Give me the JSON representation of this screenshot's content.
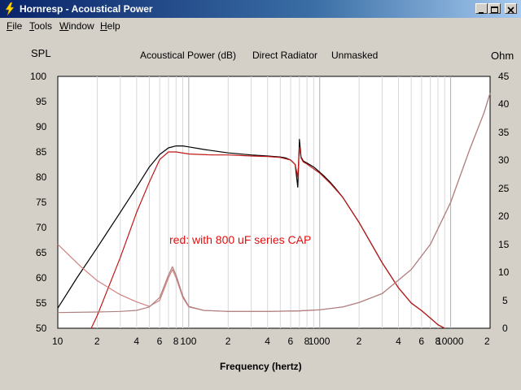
{
  "window": {
    "title": "Hornresp - Acoustical Power"
  },
  "menu": [
    {
      "label": "File",
      "u": "F",
      "rest": "ile"
    },
    {
      "label": "Tools",
      "u": "T",
      "rest": "ools"
    },
    {
      "label": "Window",
      "u": "W",
      "rest": "indow"
    },
    {
      "label": "Help",
      "u": "H",
      "rest": "elp"
    }
  ],
  "chart": {
    "left_axis_label": "SPL",
    "right_axis_label": "Ohm",
    "title_parts": [
      "Acoustical Power (dB)",
      "Direct Radiator",
      "Unmasked"
    ],
    "xlabel": "Frequency (hertz)",
    "annotation": "red: with 800 uF series CAP",
    "annotation_color": "#e01010"
  },
  "chart_data": {
    "type": "line",
    "x_scale": "log",
    "xlim": [
      10,
      20000
    ],
    "ylim_left": [
      50,
      100
    ],
    "ylim_right": [
      0,
      45
    ],
    "y_ticks_left": [
      "100",
      "95",
      "90",
      "85",
      "80",
      "75",
      "70",
      "65",
      "60",
      "55",
      "50"
    ],
    "y_ticks_right": [
      "45",
      "40",
      "35",
      "30",
      "25",
      "20",
      "15",
      "10",
      "5",
      "0"
    ],
    "x_ticks": [
      "10",
      "2",
      "4",
      "6",
      "8",
      "100",
      "2",
      "4",
      "6",
      "8",
      "1000",
      "2",
      "4",
      "6",
      "8",
      "10000",
      "2"
    ],
    "grid": true,
    "series": [
      {
        "color": "#000000",
        "axis": "left",
        "x": [
          10,
          14,
          20,
          30,
          40,
          50,
          60,
          70,
          80,
          90,
          100,
          130,
          200,
          300,
          400,
          500,
          550,
          600,
          650,
          680,
          700,
          720,
          750,
          800,
          900,
          1000,
          1100,
          1200,
          1300,
          1500,
          2000,
          3000,
          4000,
          5000,
          6000,
          7000,
          8000,
          9000
        ],
        "y": [
          54,
          60,
          66,
          73,
          78,
          82,
          84.5,
          85.8,
          86.2,
          86.2,
          86,
          85.5,
          84.8,
          84.4,
          84.2,
          84,
          83.8,
          83.4,
          82.5,
          78,
          87.5,
          84,
          83.2,
          82.8,
          82,
          81,
          80,
          79,
          78,
          76,
          71,
          63,
          58,
          55,
          53.5,
          52,
          50.7,
          50
        ]
      },
      {
        "color": "#c01818",
        "axis": "left",
        "x": [
          18,
          20,
          30,
          40,
          50,
          60,
          70,
          80,
          100,
          150,
          200,
          300,
          400,
          500,
          600,
          650,
          680,
          700,
          720,
          750,
          800,
          1000,
          1200,
          1500,
          2000,
          3000,
          4000,
          5000,
          6000,
          7000,
          8000,
          9000
        ],
        "y": [
          50,
          52.5,
          64,
          73,
          79,
          83.5,
          85,
          85,
          84.6,
          84.4,
          84.4,
          84.2,
          84.1,
          83.9,
          83.4,
          82.5,
          80,
          86,
          83.8,
          83,
          82.6,
          80.8,
          78.8,
          76,
          71,
          63,
          58,
          55,
          53.5,
          52,
          50.7,
          50
        ]
      },
      {
        "color": "#d08080",
        "axis": "right",
        "x": [
          10,
          15,
          20,
          30,
          40,
          50,
          60,
          70,
          75,
          80,
          90,
          100,
          130,
          200,
          400,
          700,
          1000,
          1500,
          2000,
          3000,
          5000,
          7000,
          10000,
          14000,
          18000,
          20000
        ],
        "y": [
          15,
          11,
          8.5,
          6,
          4.7,
          3.9,
          5,
          9,
          10.5,
          9,
          5.5,
          3.8,
          3.2,
          3,
          3,
          3.1,
          3.3,
          3.8,
          4.6,
          6.2,
          10.5,
          15,
          22.5,
          32,
          38.5,
          42
        ]
      },
      {
        "color": "#b08080",
        "axis": "right",
        "x": [
          10,
          20,
          30,
          40,
          50,
          60,
          70,
          75,
          80,
          90,
          100,
          130,
          200,
          400,
          700,
          1000,
          1500,
          2000,
          3000,
          5000,
          7000,
          10000,
          14000,
          18000,
          20000
        ],
        "y": [
          2.8,
          2.9,
          3,
          3.2,
          3.8,
          5.5,
          9.5,
          11,
          9.5,
          5.8,
          3.9,
          3.2,
          3,
          3,
          3.1,
          3.3,
          3.8,
          4.6,
          6.2,
          10.5,
          15,
          22.5,
          32,
          38.5,
          42
        ]
      }
    ]
  }
}
